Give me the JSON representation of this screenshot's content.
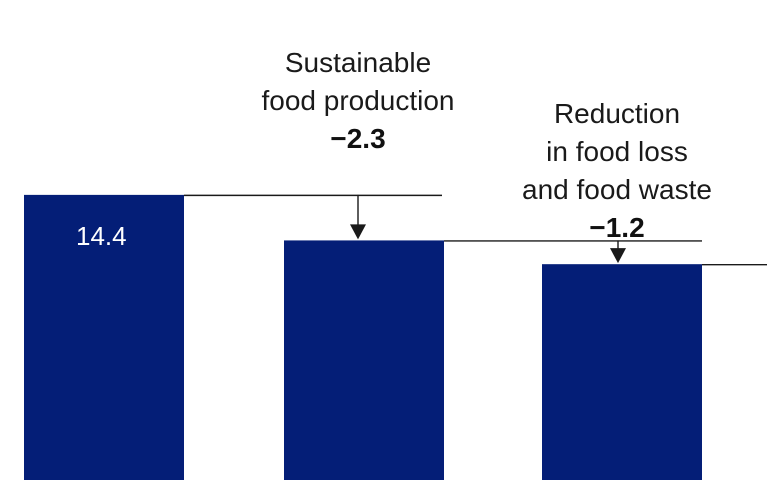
{
  "chart_data": {
    "type": "bar",
    "subtype": "waterfall",
    "ylim": [
      0,
      16.4
    ],
    "grid": false,
    "legend": "none",
    "bars": [
      {
        "value": 14.4,
        "label": "14.4"
      },
      {
        "value": 12.1,
        "label": ""
      },
      {
        "value": 10.9,
        "label": ""
      }
    ],
    "steps": [
      {
        "lines": [
          "Sustainable",
          "food production"
        ],
        "delta": -2.3,
        "delta_label": "−2.3"
      },
      {
        "lines": [
          "Reduction",
          "in food loss",
          "and food waste"
        ],
        "delta": -1.2,
        "delta_label": "−1.2"
      }
    ]
  },
  "colors": {
    "bar": "#041e77",
    "line": "#1a1a1a",
    "bar_label": "#ffffff"
  }
}
